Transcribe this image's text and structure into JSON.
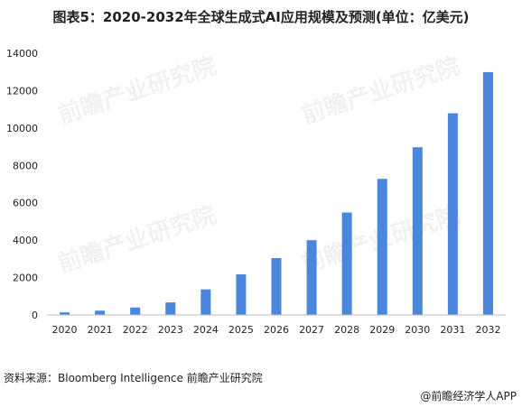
{
  "title": "图表5：2020-2032年全球生成式AI应用规模及预测(单位：亿美元)",
  "source": "资料来源：Bloomberg Intelligence 前瞻产业研究院",
  "credit": "@前瞻经济学人APP",
  "watermark_text": "前瞻产业研究院",
  "colors": {
    "bar": "#4a86dd",
    "axis": "#bbbbbb",
    "text": "#222222"
  },
  "chart_data": {
    "type": "bar",
    "title": "图表5：2020-2032年全球生成式AI应用规模及预测(单位：亿美元)",
    "xlabel": "",
    "ylabel": "",
    "categories": [
      "2020",
      "2021",
      "2022",
      "2023",
      "2024",
      "2025",
      "2026",
      "2027",
      "2028",
      "2029",
      "2030",
      "2031",
      "2032"
    ],
    "values": [
      140,
      230,
      400,
      670,
      1370,
      2170,
      3040,
      4000,
      5480,
      7280,
      8970,
      10790,
      12990
    ],
    "ylim": [
      0,
      14000
    ],
    "yticks": [
      "0",
      "2000",
      "4000",
      "6000",
      "8000",
      "10000",
      "12000",
      "14000"
    ],
    "grid": false,
    "legend": "none"
  }
}
